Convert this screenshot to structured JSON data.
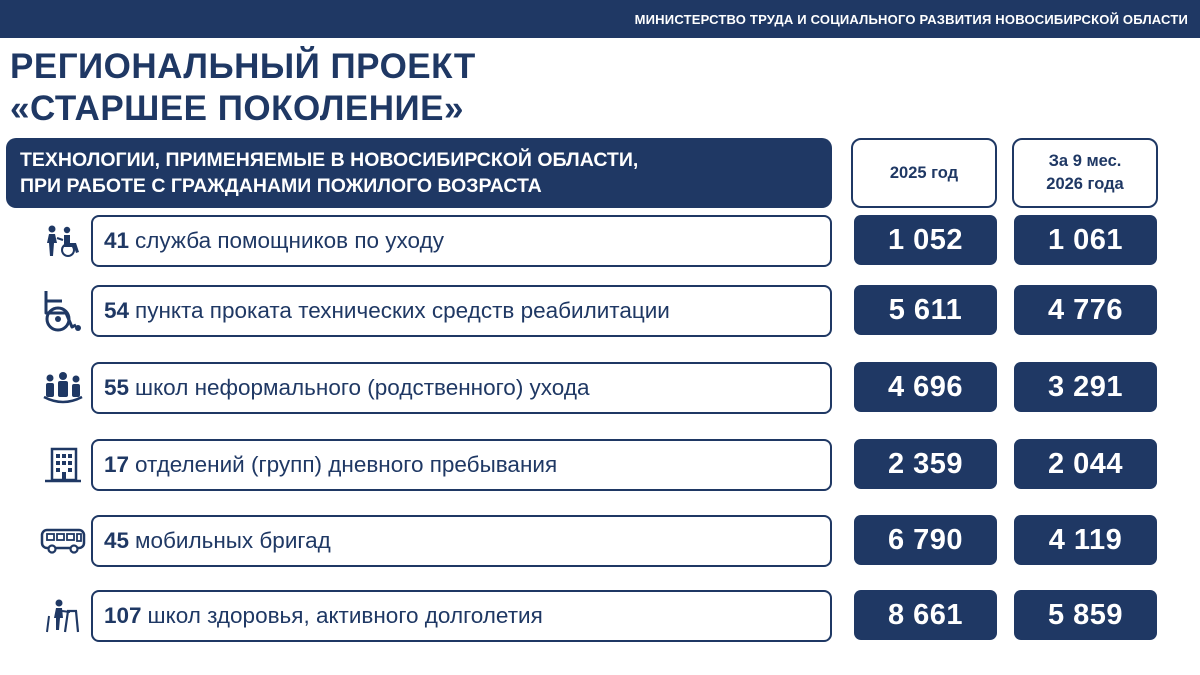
{
  "header": {
    "ministry": "МИНИСТЕРСТВО ТРУДА И СОЦИАЛЬНОГО РАЗВИТИЯ НОВОСИБИРСКОЙ ОБЛАСТИ"
  },
  "title": {
    "line1": "РЕГИОНАЛЬНЫЙ ПРОЕКТ",
    "line2": "«СТАРШЕЕ ПОКОЛЕНИЕ»"
  },
  "section": {
    "line1": "ТЕХНОЛОГИИ, ПРИМЕНЯЕМЫЕ В НОВОСИБИРСКОЙ ОБЛАСТИ,",
    "line2": "ПРИ РАБОТЕ С ГРАЖДАНАМИ ПОЖИЛОГО ВОЗРАСТА"
  },
  "columns": {
    "col1": "2025 год",
    "col2_line1": "За 9 мес.",
    "col2_line2": "2026 года"
  },
  "colors": {
    "brand": "#1f3864",
    "background": "#ffffff"
  },
  "rows": [
    {
      "icon": "caregiver-wheelchair-icon",
      "count": "41",
      "text": "служба помощников по уходу",
      "value_2025": "1 052",
      "value_2026": "1 061"
    },
    {
      "icon": "wheelchair-icon",
      "count": "54",
      "text": "пункта проката технических средств реабилитации",
      "value_2025": "5 611",
      "value_2026": "4 776"
    },
    {
      "icon": "family-icon",
      "count": "55",
      "text": "школ неформального (родственного) ухода",
      "value_2025": "4 696",
      "value_2026": "3 291"
    },
    {
      "icon": "building-icon",
      "count": "17",
      "text": "отделений (групп) дневного пребывания",
      "value_2025": "2 359",
      "value_2026": "2 044"
    },
    {
      "icon": "bus-icon",
      "count": "45",
      "text": "мобильных бригад",
      "value_2025": "6 790",
      "value_2026": "4 119"
    },
    {
      "icon": "walker-icon",
      "count": "107",
      "text": "школ здоровья, активного долголетия",
      "value_2025": "8 661",
      "value_2026": "5 859"
    }
  ]
}
